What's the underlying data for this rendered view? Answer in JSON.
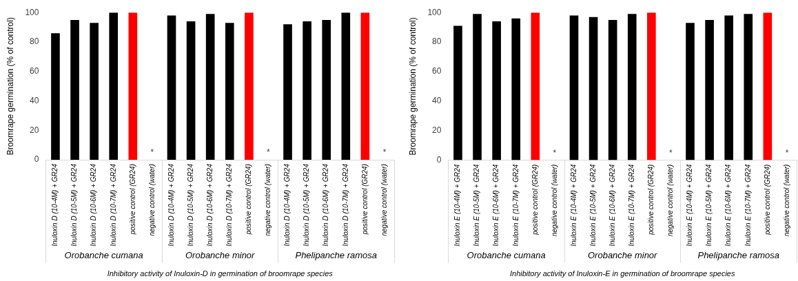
{
  "chart_data": [
    {
      "type": "bar",
      "xlabel": "Inhibitory activity of Inuloxin-D in germination of broomrape species",
      "ylabel": "Broomrape germination (% of control)",
      "categories": [
        "Inuloxin D (10-4M) + GR24",
        "Inuloxin D (10-5M) + GR24",
        "Inuloxin D (10-6M) + GR24",
        "Inuloxin D (10-7M) + GR24",
        "positive control (GR24)",
        "negative control (water)",
        "Inuloxin D (10-4M) + GR24",
        "Inuloxin D (10-5M) + GR24",
        "Inuloxin D (10-6M) + GR24",
        "Inuloxin D (10-7M) + GR24",
        "positive control (GR24)",
        "negative control (water)",
        "Inuloxin D (10-4M) + GR24",
        "Inuloxin D (10-5M) + GR24",
        "Inuloxin D (10-6M) + GR24",
        "Inuloxin D (10-7M) + GR24",
        "positive control (GR24)",
        "negative control (water)"
      ],
      "values": [
        86,
        95,
        93,
        100,
        100,
        0,
        98,
        94,
        99,
        93,
        100,
        0,
        92,
        94,
        95,
        100,
        100,
        0
      ],
      "colors": [
        "#000000",
        "#000000",
        "#000000",
        "#000000",
        "#ff0000",
        "#000000",
        "#000000",
        "#000000",
        "#000000",
        "#000000",
        "#ff0000",
        "#000000",
        "#000000",
        "#000000",
        "#000000",
        "#000000",
        "#ff0000",
        "#000000"
      ],
      "value_labels": [
        null,
        null,
        null,
        null,
        null,
        "*",
        null,
        null,
        null,
        null,
        null,
        "*",
        null,
        null,
        null,
        null,
        null,
        "*"
      ],
      "annotations": [
        "Orobanche cumana",
        "Orobanche minor",
        "Phelipanche ramosa"
      ],
      "ylim": [
        0,
        100
      ],
      "yticks": [
        0,
        20,
        40,
        60,
        80,
        100
      ],
      "grid": false,
      "legend": false
    },
    {
      "type": "bar",
      "xlabel": "Inhibitory activity of Inuloxin-E in germination of broomrape species",
      "ylabel": "Broomrape germination (% of control)",
      "categories": [
        "Inuloxin E (10-4M) + GR24",
        "Inuloxin E (10-5M) + GR24",
        "Inuloxin E (10-6M) + GR24",
        "Inuloxin E (10-7M) + GR24",
        "positive control (GR24)",
        "negative control (water)",
        "Inuloxin E (10-4M) + GR24",
        "Inuloxin E (10-5M) + GR24",
        "Inuloxin E (10-6M) + GR24",
        "Inuloxin E (10-7M) + GR24",
        "positive control (GR24)",
        "negative control (water)",
        "Inuloxin E (10-4M) + GR24",
        "Inuloxin E (10-5M) + GR24",
        "Inuloxin E (10-6M) + GR24",
        "Inuloxin E (10-7M) + GR24",
        "positive control (GR24)",
        "negative control (water)"
      ],
      "values": [
        91,
        99,
        94,
        96,
        100,
        0,
        98,
        97,
        95,
        99,
        100,
        0,
        93,
        95,
        98,
        99,
        100,
        0
      ],
      "colors": [
        "#000000",
        "#000000",
        "#000000",
        "#000000",
        "#ff0000",
        "#000000",
        "#000000",
        "#000000",
        "#000000",
        "#000000",
        "#ff0000",
        "#000000",
        "#000000",
        "#000000",
        "#000000",
        "#000000",
        "#ff0000",
        "#000000"
      ],
      "value_labels": [
        null,
        null,
        null,
        null,
        null,
        "*",
        null,
        null,
        null,
        null,
        null,
        "*",
        null,
        null,
        null,
        null,
        null,
        "*"
      ],
      "annotations": [
        "Orobanche cumana",
        "Orobanche minor",
        "Phelipanche ramosa"
      ],
      "ylim": [
        0,
        100
      ],
      "yticks": [
        0,
        20,
        40,
        60,
        80,
        100
      ],
      "grid": false,
      "legend": false
    }
  ]
}
